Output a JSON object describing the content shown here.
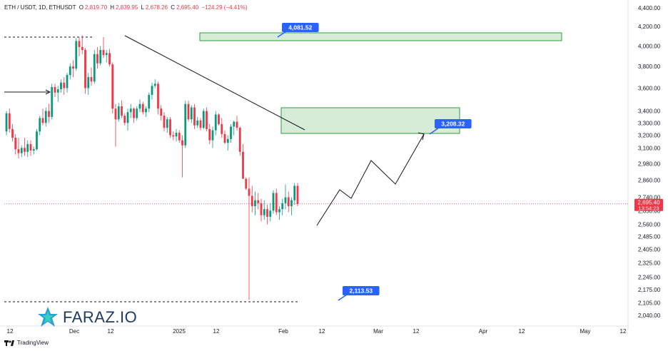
{
  "header": {
    "symbol": "ETH / USDT, 1D, ETHUSDT",
    "open_label": "O",
    "open": "2,819.70",
    "high_label": "H",
    "high": "2,839.95",
    "low_label": "L",
    "low": "2,678.26",
    "close_label": "C",
    "close": "2,695.40",
    "change": "−124.29 (−4.41%)"
  },
  "branding": {
    "logo_text": "FARAZ.IO",
    "footer_text": "TradingView"
  },
  "colors": {
    "up": "#089981",
    "down": "#f23645",
    "zone_fill": "#c8e6c9",
    "zone_stroke": "#2e9e3e",
    "label_blue": "#2962ff"
  },
  "chart_data": {
    "type": "candlestick",
    "y_axis": {
      "scale": "log",
      "ticks": [
        "4,400.00",
        "4,200.00",
        "4,000.00",
        "3,800.00",
        "3,600.00",
        "3,400.00",
        "3,300.00",
        "3,200.00",
        "3,100.00",
        "2,980.00",
        "2,860.00",
        "2,740.00",
        "2,650.00",
        "2,560.00",
        "2,485.00",
        "2,405.00",
        "2,325.00",
        "2,245.00",
        "2,175.00",
        "2,105.00",
        "2,040.00"
      ]
    },
    "x_axis": {
      "ticks": [
        "12",
        "Dec",
        "12",
        "2025",
        "12",
        "Feb",
        "12",
        "Mar",
        "12",
        "Apr",
        "12",
        "May",
        "12"
      ]
    },
    "last_price": {
      "value": "2,695.40",
      "countdown": "13:54:23"
    },
    "annotations": [
      {
        "type": "resistance_zone",
        "label": "4,081.52",
        "y_range": [
          4045,
          4125
        ]
      },
      {
        "type": "resistance_zone",
        "label": "3,208.32",
        "y_range": [
          3208,
          3430
        ]
      },
      {
        "type": "price_label",
        "label": "2,113.53",
        "y": 2113.53
      },
      {
        "type": "trendline_descending"
      },
      {
        "type": "horizontal_level",
        "style": "dashed",
        "y": 4081
      },
      {
        "type": "horizontal_level",
        "style": "dashed",
        "y": 2113.53
      },
      {
        "type": "projection_path"
      }
    ]
  }
}
